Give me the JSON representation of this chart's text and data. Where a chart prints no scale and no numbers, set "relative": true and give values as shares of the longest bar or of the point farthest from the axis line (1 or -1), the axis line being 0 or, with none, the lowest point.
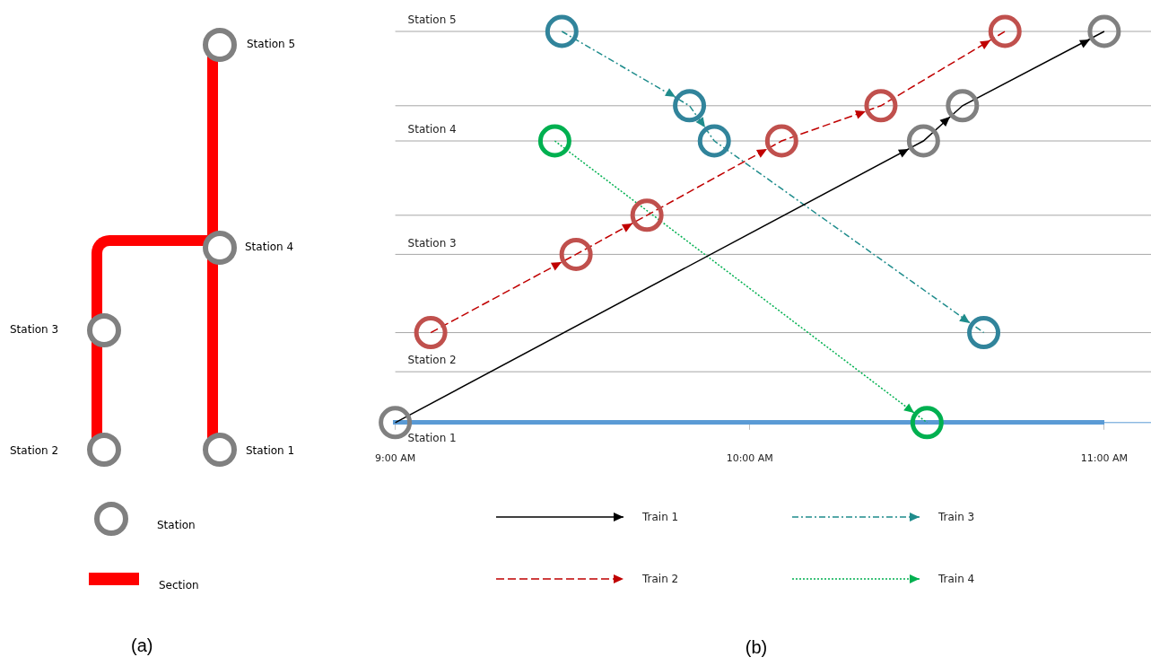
{
  "chart_data": [
    {
      "type": "other",
      "annotations": [
        "Station 5",
        "Station 4",
        "Station 3",
        "Station 2",
        "Station 1",
        "Station",
        "Section",
        "(a)"
      ]
    },
    {
      "type": "line",
      "relative": true,
      "legend": "bottom",
      "marker": "circle",
      "grid": false,
      "xlim": [
        9,
        11
      ],
      "xticks": [
        {
          "value": 9,
          "label": "9:00 AM"
        },
        {
          "value": 10,
          "label": "10:00 AM"
        },
        {
          "value": 11,
          "label": "11:00 AM"
        }
      ],
      "series": [
        {
          "name": "Train 1",
          "color": "#000000",
          "line_style": "solid",
          "colors": [
            "#808080",
            "#808080",
            "#808080",
            "#808080"
          ],
          "x": [
            9.0,
            10.49,
            10.6,
            11.0
          ],
          "values": [
            0,
            0.72,
            0.81,
            1.0
          ]
        },
        {
          "name": "Train 2",
          "color": "#c00000",
          "line_style": "dashed",
          "colors": [
            "#c0504d",
            "#c0504d",
            "#c0504d",
            "#c0504d",
            "#c0504d",
            "#c0504d"
          ],
          "x": [
            9.1,
            9.51,
            9.71,
            10.09,
            10.37,
            10.72
          ],
          "values": [
            0.23,
            0.43,
            0.53,
            0.72,
            0.81,
            1.0
          ]
        },
        {
          "name": "Train 3",
          "color": "#1f8c8c",
          "line_style": "dashdot",
          "colors": [
            "#31849b",
            "#31849b",
            "#31849b",
            "#31849b"
          ],
          "x": [
            9.47,
            9.83,
            9.9,
            10.66
          ],
          "values": [
            1.0,
            0.81,
            0.72,
            0.23
          ]
        },
        {
          "name": "Train 4",
          "color": "#00b050",
          "line_style": "dotted",
          "colors": [
            "#00b050",
            "#00b050"
          ],
          "x": [
            9.45,
            10.5
          ],
          "values": [
            0.72,
            0
          ]
        }
      ],
      "ref_lines": [
        {
          "axis": "y",
          "value": 1.0,
          "label": "Station 5",
          "color": "#a6a6a6"
        },
        {
          "axis": "y",
          "value": 0.81,
          "label": null,
          "color": "#a6a6a6"
        },
        {
          "axis": "y",
          "value": 0.72,
          "label": "Station 4",
          "color": "#a6a6a6"
        },
        {
          "axis": "y",
          "value": 0.53,
          "label": null,
          "color": "#a6a6a6"
        },
        {
          "axis": "y",
          "value": 0.43,
          "label": "Station 3",
          "color": "#a6a6a6"
        },
        {
          "axis": "y",
          "value": 0.23,
          "label": null,
          "color": "#a6a6a6"
        },
        {
          "axis": "y",
          "value": 0.13,
          "label": "Station 2",
          "color": "#a6a6a6"
        },
        {
          "axis": "y",
          "value": 0,
          "label": "Station 1",
          "color": "#5b9bd5"
        }
      ],
      "annotations": [
        "(b)"
      ]
    }
  ]
}
